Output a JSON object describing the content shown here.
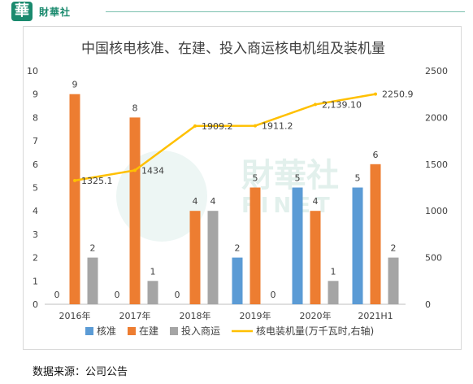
{
  "header": {
    "logo_glyph": "華",
    "brand": "財華社"
  },
  "watermark": {
    "cn": "財華社",
    "en": "FINET"
  },
  "source_note": "数据来源：公司公告",
  "colors": {
    "approved": "#5b9bd5",
    "construction": "#ed7d31",
    "operation": "#a5a5a5",
    "capacity": "#ffc000",
    "brand": "#1a8a6e"
  },
  "chart_data": {
    "type": "bar",
    "title": "中国核电核准、在建、投入商运核电机组及装机量",
    "categories": [
      "2016年",
      "2017年",
      "2018年",
      "2019年",
      "2020年",
      "2021H1"
    ],
    "series": [
      {
        "name": "核准",
        "values": [
          0,
          0,
          0,
          2,
          5,
          5
        ],
        "color": "#5b9bd5",
        "labels": [
          "0",
          "0",
          "0",
          "2",
          "5",
          "5"
        ]
      },
      {
        "name": "在建",
        "values": [
          9,
          8,
          4,
          5,
          4,
          6
        ],
        "color": "#ed7d31",
        "labels": [
          "9",
          "8",
          "4",
          "5",
          "4",
          "6"
        ]
      },
      {
        "name": "投入商运",
        "values": [
          2,
          1,
          4,
          0,
          1,
          2
        ],
        "color": "#a5a5a5",
        "labels": [
          "2",
          "1",
          "4",
          "0",
          "1",
          "2"
        ]
      }
    ],
    "line_series": {
      "name": "核电装机量(万千瓦时,右轴)",
      "values": [
        1325.1,
        1434,
        1909.2,
        1911.2,
        2139.1,
        2250.9
      ],
      "labels": [
        "1325.1",
        "1434",
        "1909.2",
        "1911.2",
        "2,139.10",
        "2250.9"
      ],
      "color": "#ffc000",
      "axis": "right"
    },
    "ylim_left": [
      0,
      10
    ],
    "yticks_left": [
      "0",
      "1",
      "2",
      "3",
      "4",
      "5",
      "6",
      "7",
      "8",
      "9",
      "10"
    ],
    "ylim_right": [
      0,
      2500
    ],
    "yticks_right": [
      "0",
      "500",
      "1000",
      "1500",
      "2000",
      "2500"
    ],
    "grid": false,
    "legend_position": "bottom"
  }
}
